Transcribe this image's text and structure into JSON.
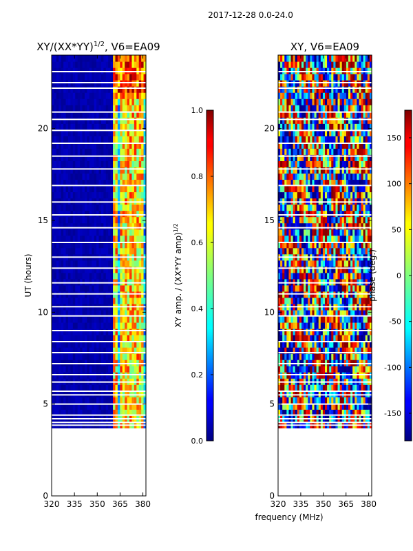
{
  "suptitle": "2017-12-28 0.0-24.0",
  "shared_xlabel": "frequency (MHz)",
  "colors": {
    "jet_dark_blue": "#00007f",
    "jet_blue": "#0000ff",
    "jet_cyan": "#00ffff",
    "jet_yellow": "#ffff00",
    "jet_red": "#ff0000",
    "jet_dark_red": "#7f0000"
  },
  "chart_data": [
    {
      "type": "heatmap",
      "title": "XY/(XX*YY)",
      "title_exponent": "1/2",
      "title_suffix": ", V6=EA09",
      "xlabel": "",
      "ylabel": "UT (hours)",
      "xlim": [
        320,
        382
      ],
      "ylim": [
        0,
        24
      ],
      "x_ticks": [
        320,
        335,
        350,
        365,
        380
      ],
      "y_ticks": [
        0,
        5,
        10,
        15,
        20
      ],
      "data_time_range": [
        3.7,
        24
      ],
      "colorbar": {
        "label": "XY amp. / (XX*YY amp)",
        "label_exponent": "1/2",
        "range": [
          0,
          1
        ],
        "ticks": [
          "0.0",
          "0.2",
          "0.4",
          "0.6",
          "0.8",
          "1.0"
        ]
      },
      "bright_channels_MHz": [
        360,
        362,
        366,
        369,
        372,
        376,
        379
      ],
      "gap_times_UT": [
        3.85,
        4.0,
        4.2,
        4.4,
        5.0,
        5.5,
        5.7,
        6.2,
        6.6,
        7.2,
        7.8,
        8.4,
        9.0,
        9.8,
        10.3,
        11.0,
        11.6,
        12.4,
        13.0,
        13.8,
        14.6,
        15.3,
        16.0,
        16.9,
        17.8,
        18.5,
        19.2,
        19.9,
        20.5,
        20.9,
        22.2,
        22.5,
        23.1
      ]
    },
    {
      "type": "heatmap",
      "title": "XY, V6=EA09",
      "xlabel": "frequency (MHz)",
      "ylabel": "",
      "xlim": [
        320,
        382
      ],
      "ylim": [
        0,
        24
      ],
      "x_ticks": [
        320,
        335,
        350,
        365,
        380
      ],
      "y_ticks": [
        0,
        5,
        10,
        15,
        20
      ],
      "data_time_range": [
        3.7,
        24
      ],
      "colorbar": {
        "label": "phase (deg.)",
        "range": [
          -180,
          180
        ],
        "ticks": [
          "-150",
          "-100",
          "-50",
          "0",
          "50",
          "100",
          "150"
        ]
      },
      "gap_times_UT": [
        3.85,
        4.0,
        4.2,
        4.4,
        5.0,
        5.5,
        5.7,
        6.2,
        6.6,
        7.2,
        7.8,
        8.4,
        9.0,
        9.8,
        10.3,
        11.0,
        11.6,
        12.4,
        13.0,
        13.8,
        14.6,
        15.3,
        16.0,
        16.9,
        17.8,
        18.5,
        19.2,
        19.9,
        20.5,
        20.9,
        22.2,
        22.5,
        23.1
      ]
    }
  ]
}
